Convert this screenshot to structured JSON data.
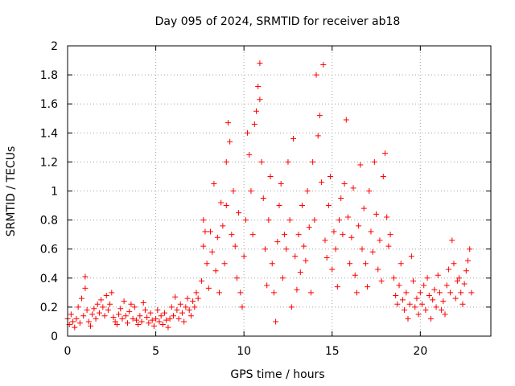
{
  "chart_data": {
    "type": "scatter",
    "title": "Day 095 of 2024, SRMTID for receiver ab18",
    "xlabel": "GPS time / hours",
    "ylabel": "SRMTID / TECUs",
    "xlim": [
      0,
      24
    ],
    "ylim": [
      0,
      2
    ],
    "xticks": [
      0,
      5,
      10,
      15,
      20
    ],
    "xtick_labels": [
      "0",
      "5",
      "10",
      "15",
      "20"
    ],
    "yticks": [
      0,
      0.2,
      0.4,
      0.6,
      0.8,
      1,
      1.2,
      1.4,
      1.6,
      1.8,
      2
    ],
    "ytick_labels": [
      "0",
      "0.2",
      "0.4",
      "0.6",
      "0.8",
      "1",
      "1.2",
      "1.4",
      "1.6",
      "1.8",
      "2"
    ],
    "grid": true,
    "marker": "+",
    "series": [
      {
        "name": "SRMTID",
        "color": "#ff0000",
        "points": [
          [
            0.0,
            0.12
          ],
          [
            0.1,
            0.08
          ],
          [
            0.2,
            0.15
          ],
          [
            0.3,
            0.1
          ],
          [
            0.4,
            0.06
          ],
          [
            0.5,
            0.12
          ],
          [
            0.6,
            0.2
          ],
          [
            0.7,
            0.09
          ],
          [
            0.8,
            0.26
          ],
          [
            0.9,
            0.14
          ],
          [
            1.0,
            0.41
          ],
          [
            1.0,
            0.33
          ],
          [
            1.1,
            0.18
          ],
          [
            1.2,
            0.1
          ],
          [
            1.3,
            0.07
          ],
          [
            1.4,
            0.15
          ],
          [
            1.5,
            0.19
          ],
          [
            1.6,
            0.12
          ],
          [
            1.7,
            0.22
          ],
          [
            1.8,
            0.16
          ],
          [
            1.9,
            0.25
          ],
          [
            2.0,
            0.2
          ],
          [
            2.1,
            0.14
          ],
          [
            2.2,
            0.28
          ],
          [
            2.3,
            0.18
          ],
          [
            2.4,
            0.22
          ],
          [
            2.5,
            0.3
          ],
          [
            2.6,
            0.13
          ],
          [
            2.7,
            0.1
          ],
          [
            2.8,
            0.08
          ],
          [
            2.9,
            0.15
          ],
          [
            3.0,
            0.19
          ],
          [
            3.1,
            0.12
          ],
          [
            3.2,
            0.24
          ],
          [
            3.3,
            0.14
          ],
          [
            3.4,
            0.09
          ],
          [
            3.5,
            0.17
          ],
          [
            3.6,
            0.22
          ],
          [
            3.7,
            0.12
          ],
          [
            3.8,
            0.2
          ],
          [
            3.9,
            0.11
          ],
          [
            4.0,
            0.08
          ],
          [
            4.1,
            0.14
          ],
          [
            4.2,
            0.1
          ],
          [
            4.3,
            0.23
          ],
          [
            4.4,
            0.18
          ],
          [
            4.5,
            0.13
          ],
          [
            4.6,
            0.09
          ],
          [
            4.7,
            0.16
          ],
          [
            4.8,
            0.11
          ],
          [
            4.9,
            0.07
          ],
          [
            5.0,
            0.12
          ],
          [
            5.1,
            0.18
          ],
          [
            5.2,
            0.1
          ],
          [
            5.3,
            0.14
          ],
          [
            5.4,
            0.08
          ],
          [
            5.5,
            0.16
          ],
          [
            5.6,
            0.11
          ],
          [
            5.7,
            0.06
          ],
          [
            5.8,
            0.12
          ],
          [
            5.9,
            0.2
          ],
          [
            6.0,
            0.14
          ],
          [
            6.1,
            0.27
          ],
          [
            6.2,
            0.18
          ],
          [
            6.3,
            0.12
          ],
          [
            6.4,
            0.22
          ],
          [
            6.5,
            0.16
          ],
          [
            6.6,
            0.1
          ],
          [
            6.7,
            0.2
          ],
          [
            6.8,
            0.26
          ],
          [
            6.9,
            0.18
          ],
          [
            7.0,
            0.14
          ],
          [
            7.1,
            0.24
          ],
          [
            7.2,
            0.2
          ],
          [
            7.3,
            0.3
          ],
          [
            7.4,
            0.26
          ],
          [
            7.6,
            0.38
          ],
          [
            7.7,
            0.62
          ],
          [
            7.7,
            0.8
          ],
          [
            7.8,
            0.72
          ],
          [
            7.9,
            0.5
          ],
          [
            8.0,
            0.33
          ],
          [
            8.1,
            0.72
          ],
          [
            8.2,
            0.58
          ],
          [
            8.3,
            1.05
          ],
          [
            8.4,
            0.45
          ],
          [
            8.5,
            0.68
          ],
          [
            8.6,
            0.3
          ],
          [
            8.7,
            0.92
          ],
          [
            8.8,
            0.76
          ],
          [
            8.9,
            0.5
          ],
          [
            9.0,
            1.2
          ],
          [
            9.0,
            0.9
          ],
          [
            9.1,
            1.47
          ],
          [
            9.2,
            1.34
          ],
          [
            9.3,
            0.7
          ],
          [
            9.4,
            1.0
          ],
          [
            9.5,
            0.62
          ],
          [
            9.6,
            0.4
          ],
          [
            9.7,
            0.85
          ],
          [
            9.8,
            0.3
          ],
          [
            9.9,
            0.2
          ],
          [
            10.0,
            0.55
          ],
          [
            10.1,
            0.8
          ],
          [
            10.2,
            1.4
          ],
          [
            10.3,
            1.25
          ],
          [
            10.4,
            1.0
          ],
          [
            10.5,
            0.7
          ],
          [
            10.6,
            1.46
          ],
          [
            10.7,
            1.55
          ],
          [
            10.8,
            1.72
          ],
          [
            10.9,
            1.88
          ],
          [
            10.9,
            1.63
          ],
          [
            11.0,
            1.2
          ],
          [
            11.1,
            0.95
          ],
          [
            11.2,
            0.6
          ],
          [
            11.3,
            0.35
          ],
          [
            11.4,
            0.8
          ],
          [
            11.5,
            1.1
          ],
          [
            11.6,
            0.5
          ],
          [
            11.7,
            0.3
          ],
          [
            11.8,
            0.1
          ],
          [
            11.9,
            0.65
          ],
          [
            12.0,
            0.9
          ],
          [
            12.1,
            1.05
          ],
          [
            12.2,
            0.4
          ],
          [
            12.3,
            0.7
          ],
          [
            12.4,
            0.6
          ],
          [
            12.5,
            1.2
          ],
          [
            12.6,
            0.8
          ],
          [
            12.7,
            0.2
          ],
          [
            12.8,
            1.36
          ],
          [
            12.9,
            0.55
          ],
          [
            13.0,
            0.32
          ],
          [
            13.1,
            0.7
          ],
          [
            13.2,
            0.44
          ],
          [
            13.3,
            0.9
          ],
          [
            13.4,
            0.62
          ],
          [
            13.5,
            0.52
          ],
          [
            13.6,
            1.0
          ],
          [
            13.7,
            0.75
          ],
          [
            13.8,
            0.3
          ],
          [
            13.9,
            1.2
          ],
          [
            14.0,
            0.8
          ],
          [
            14.1,
            1.8
          ],
          [
            14.2,
            1.38
          ],
          [
            14.3,
            1.52
          ],
          [
            14.4,
            1.06
          ],
          [
            14.5,
            1.87
          ],
          [
            14.6,
            0.66
          ],
          [
            14.7,
            0.54
          ],
          [
            14.8,
            0.9
          ],
          [
            14.9,
            1.1
          ],
          [
            15.0,
            0.46
          ],
          [
            15.1,
            0.72
          ],
          [
            15.2,
            0.6
          ],
          [
            15.3,
            0.34
          ],
          [
            15.4,
            0.8
          ],
          [
            15.5,
            0.95
          ],
          [
            15.6,
            0.7
          ],
          [
            15.7,
            1.05
          ],
          [
            15.8,
            1.49
          ],
          [
            15.9,
            0.82
          ],
          [
            16.0,
            0.5
          ],
          [
            16.1,
            0.68
          ],
          [
            16.2,
            1.02
          ],
          [
            16.3,
            0.42
          ],
          [
            16.4,
            0.3
          ],
          [
            16.5,
            0.76
          ],
          [
            16.6,
            1.18
          ],
          [
            16.7,
            0.6
          ],
          [
            16.8,
            0.88
          ],
          [
            16.9,
            0.5
          ],
          [
            17.0,
            0.34
          ],
          [
            17.1,
            1.0
          ],
          [
            17.2,
            0.72
          ],
          [
            17.3,
            0.58
          ],
          [
            17.4,
            1.2
          ],
          [
            17.5,
            0.84
          ],
          [
            17.6,
            0.46
          ],
          [
            17.7,
            0.66
          ],
          [
            17.8,
            0.38
          ],
          [
            17.9,
            1.1
          ],
          [
            18.0,
            1.26
          ],
          [
            18.1,
            0.82
          ],
          [
            18.2,
            0.62
          ],
          [
            18.3,
            0.7
          ],
          [
            18.5,
            0.4
          ],
          [
            18.6,
            0.28
          ],
          [
            18.7,
            0.22
          ],
          [
            18.8,
            0.35
          ],
          [
            18.9,
            0.5
          ],
          [
            19.0,
            0.25
          ],
          [
            19.1,
            0.18
          ],
          [
            19.2,
            0.3
          ],
          [
            19.3,
            0.12
          ],
          [
            19.4,
            0.22
          ],
          [
            19.5,
            0.55
          ],
          [
            19.6,
            0.38
          ],
          [
            19.7,
            0.2
          ],
          [
            19.8,
            0.26
          ],
          [
            19.9,
            0.15
          ],
          [
            20.0,
            0.3
          ],
          [
            20.1,
            0.22
          ],
          [
            20.2,
            0.35
          ],
          [
            20.3,
            0.18
          ],
          [
            20.4,
            0.4
          ],
          [
            20.5,
            0.28
          ],
          [
            20.6,
            0.12
          ],
          [
            20.7,
            0.25
          ],
          [
            20.8,
            0.32
          ],
          [
            20.9,
            0.2
          ],
          [
            21.0,
            0.42
          ],
          [
            21.1,
            0.3
          ],
          [
            21.2,
            0.18
          ],
          [
            21.3,
            0.24
          ],
          [
            21.4,
            0.15
          ],
          [
            21.5,
            0.35
          ],
          [
            21.6,
            0.46
          ],
          [
            21.7,
            0.3
          ],
          [
            21.8,
            0.66
          ],
          [
            21.9,
            0.5
          ],
          [
            22.0,
            0.26
          ],
          [
            22.1,
            0.38
          ],
          [
            22.2,
            0.4
          ],
          [
            22.3,
            0.3
          ],
          [
            22.4,
            0.22
          ],
          [
            22.5,
            0.36
          ],
          [
            22.6,
            0.45
          ],
          [
            22.7,
            0.52
          ],
          [
            22.8,
            0.6
          ],
          [
            22.9,
            0.3
          ]
        ]
      }
    ]
  }
}
